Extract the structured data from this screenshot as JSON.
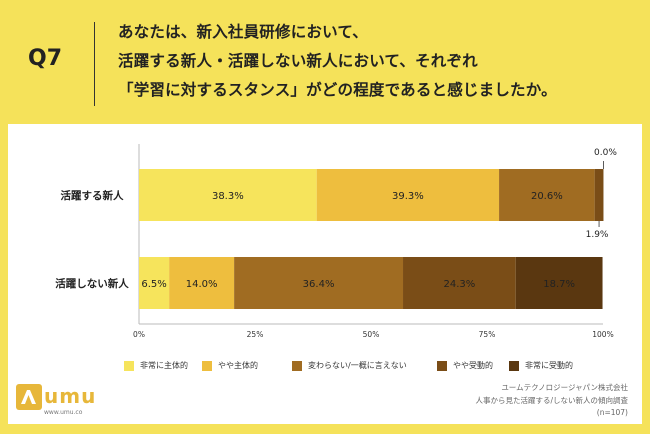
{
  "header": {
    "question_number": "Q7",
    "question_lines": [
      "あなたは、新入社員研修において、",
      "活躍する新人・活躍しない新人において、それぞれ",
      "「学習に対するスタンス」がどの程度であると感じましたか。"
    ]
  },
  "chart_data": {
    "type": "bar",
    "orientation": "horizontal",
    "stacked": true,
    "categories": [
      "活躍する新人",
      "活躍しない新人"
    ],
    "series": [
      {
        "name": "非常に主体的",
        "values": [
          38.3,
          6.5
        ],
        "labels": [
          "38.3%",
          "6.5%"
        ],
        "color": "#f6e45c"
      },
      {
        "name": "やや主体的",
        "values": [
          39.3,
          14.0
        ],
        "labels": [
          "39.3%",
          "14.0%"
        ],
        "color": "#eebe3e"
      },
      {
        "name": "変わらない/一概に言えない",
        "values": [
          20.6,
          36.4
        ],
        "labels": [
          "20.6%",
          "36.4%"
        ],
        "color": "#a06c22"
      },
      {
        "name": "やや受動的",
        "values": [
          1.9,
          24.3
        ],
        "labels": [
          "1.9%",
          "24.3%"
        ],
        "color": "#7a4d17"
      },
      {
        "name": "非常に受動的",
        "values": [
          0.0,
          18.7
        ],
        "labels": [
          "0.0%",
          "18.7%"
        ],
        "color": "#5a3710"
      }
    ],
    "xlim": [
      0,
      100
    ],
    "x_ticks": [
      "0%",
      "25%",
      "50%",
      "75%",
      "100%"
    ],
    "legend_position": "bottom",
    "grid": false
  },
  "branding": {
    "logo_text": "umu",
    "logo_url": "www.umu.co"
  },
  "source": {
    "lines": [
      "ユームテクノロジージャパン株式会社",
      "人事から見た活躍する/しない新人の傾向調査",
      "(n=107)"
    ]
  }
}
